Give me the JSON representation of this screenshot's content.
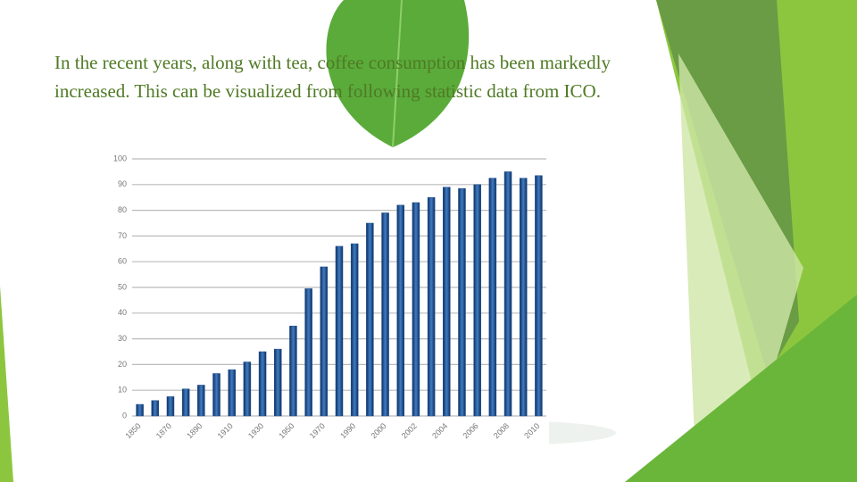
{
  "slide": {
    "text": "In the recent years, along with tea, coffee consumption has been markedly increased. This can be visualized from following statistic data from ICO."
  },
  "chart_data": {
    "type": "bar",
    "categories": [
      "1850",
      null,
      "1870",
      null,
      "1890",
      null,
      "1910",
      null,
      "1930",
      null,
      "1950",
      null,
      "1970",
      null,
      "1990",
      null,
      "2000",
      null,
      "2002",
      null,
      "2004",
      null,
      "2006",
      null,
      "2008",
      null,
      "2010"
    ],
    "values": [
      4.5,
      6,
      7.5,
      10.5,
      12,
      16.5,
      18,
      21,
      25,
      26,
      35,
      49.5,
      58,
      66,
      67,
      75,
      79,
      82,
      83,
      85,
      89,
      88.5,
      90,
      92.5,
      95,
      92.5,
      93.5
    ],
    "color": "#1f4e8c",
    "ylim": [
      0,
      100
    ],
    "yticks": [
      0,
      10,
      20,
      30,
      40,
      50,
      60,
      70,
      80,
      90,
      100
    ],
    "grid": true
  }
}
